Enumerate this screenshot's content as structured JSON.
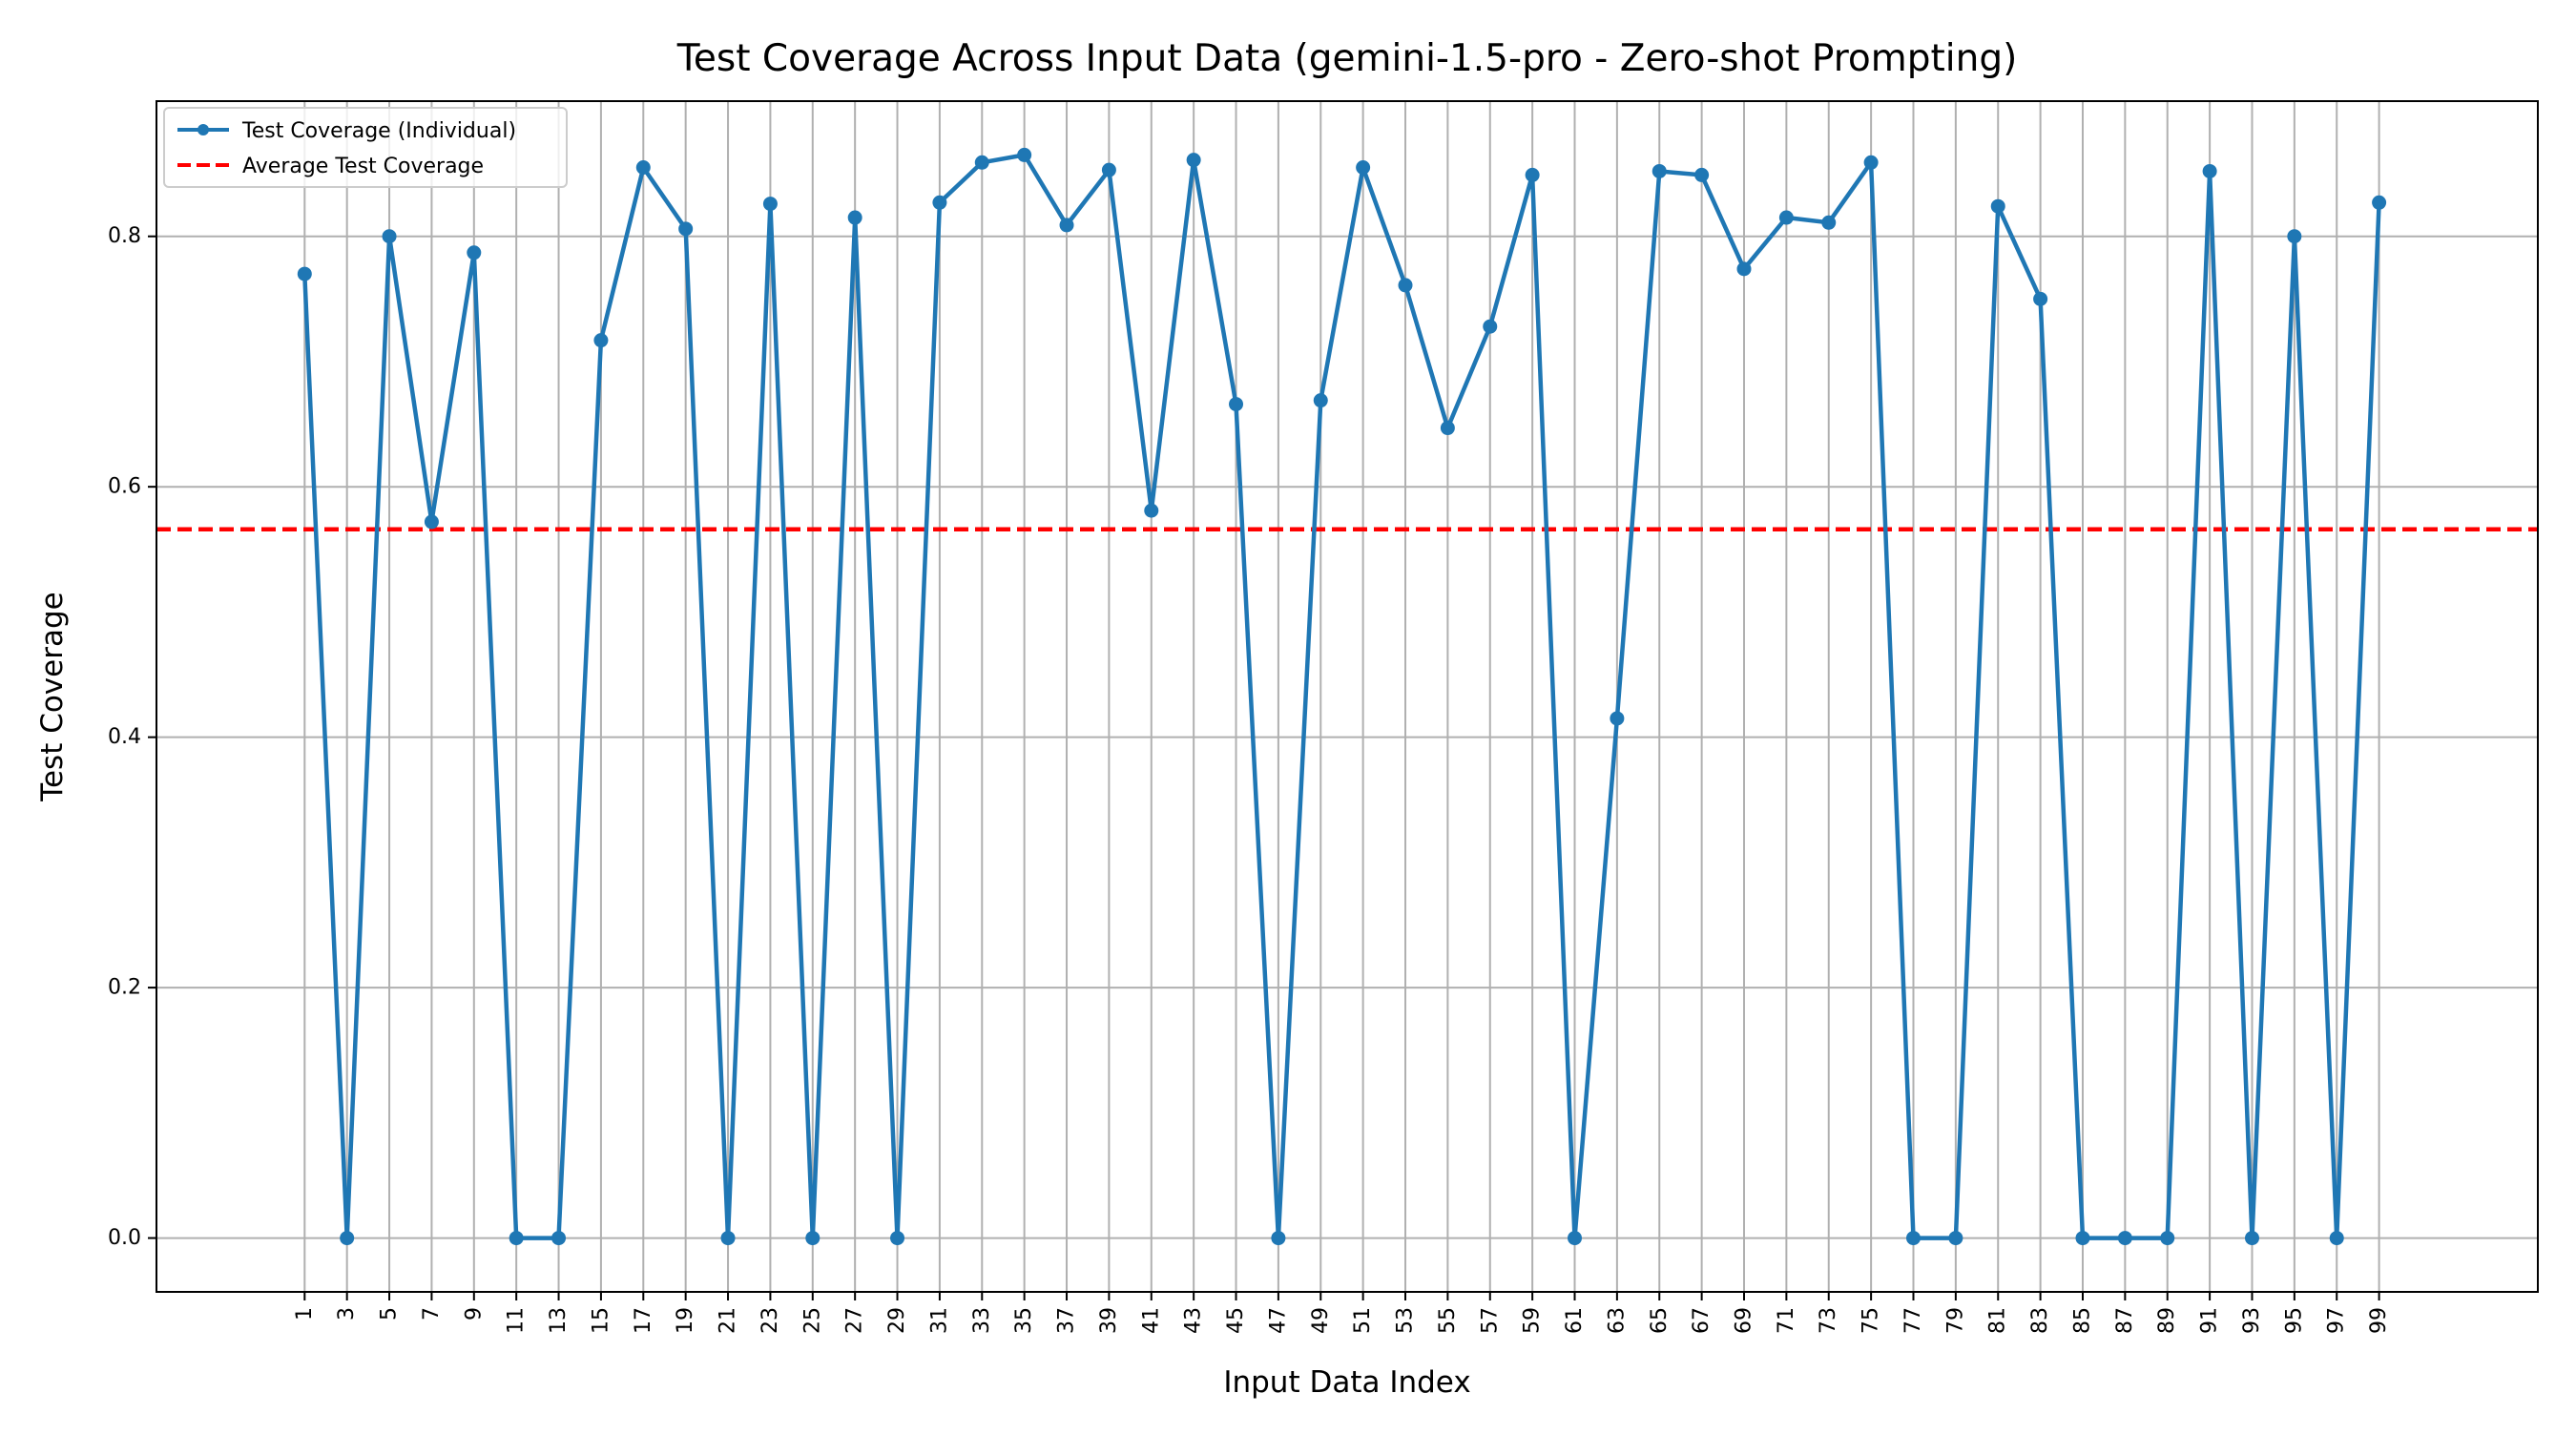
{
  "chart_data": {
    "type": "line",
    "title": "Test Coverage Across Input Data (gemini-1.5-pro - Zero-shot Prompting)",
    "xlabel": "Input Data Index",
    "ylabel": "Test Coverage",
    "x": [
      1,
      3,
      5,
      7,
      9,
      11,
      13,
      15,
      17,
      19,
      21,
      23,
      25,
      27,
      29,
      31,
      33,
      35,
      37,
      39,
      41,
      43,
      45,
      47,
      49,
      51,
      53,
      55,
      57,
      59,
      61,
      63,
      65,
      67,
      69,
      71,
      73,
      75,
      77,
      79,
      81,
      83,
      85,
      87,
      89,
      91,
      93,
      95,
      97,
      99
    ],
    "x_ticks": [
      "1",
      "3",
      "5",
      "7",
      "9",
      "11",
      "13",
      "15",
      "17",
      "19",
      "21",
      "23",
      "25",
      "27",
      "29",
      "31",
      "33",
      "35",
      "37",
      "39",
      "41",
      "43",
      "45",
      "47",
      "49",
      "51",
      "53",
      "55",
      "57",
      "59",
      "61",
      "63",
      "65",
      "67",
      "69",
      "71",
      "73",
      "75",
      "77",
      "79",
      "81",
      "83",
      "85",
      "87",
      "89",
      "91",
      "93",
      "95",
      "97",
      "99"
    ],
    "y_ticks": [
      "0.0",
      "0.2",
      "0.4",
      "0.6",
      "0.8"
    ],
    "xlim": [
      -6.0,
      106.5
    ],
    "ylim": [
      -0.043,
      0.908
    ],
    "grid": true,
    "legend_position": "top-left",
    "series": [
      {
        "name": "Test Coverage (Individual)",
        "color": "#1f77b4",
        "style": "solid-with-markers",
        "values": [
          0.77,
          0.0,
          0.8,
          0.572,
          0.787,
          0.0,
          0.0,
          0.717,
          0.855,
          0.806,
          0.0,
          0.826,
          0.0,
          0.815,
          0.0,
          0.827,
          0.859,
          0.865,
          0.809,
          0.853,
          0.581,
          0.861,
          0.666,
          0.0,
          0.669,
          0.855,
          0.761,
          0.647,
          0.728,
          0.849,
          0.0,
          0.415,
          0.852,
          0.849,
          0.774,
          0.815,
          0.811,
          0.859,
          0.0,
          0.0,
          0.824,
          0.75,
          0.0,
          0.0,
          0.0,
          0.852,
          0.0,
          0.8,
          0.0,
          0.827
        ]
      },
      {
        "name": "Average Test Coverage",
        "color": "#ff0000",
        "style": "dashed",
        "value": 0.566
      }
    ]
  }
}
